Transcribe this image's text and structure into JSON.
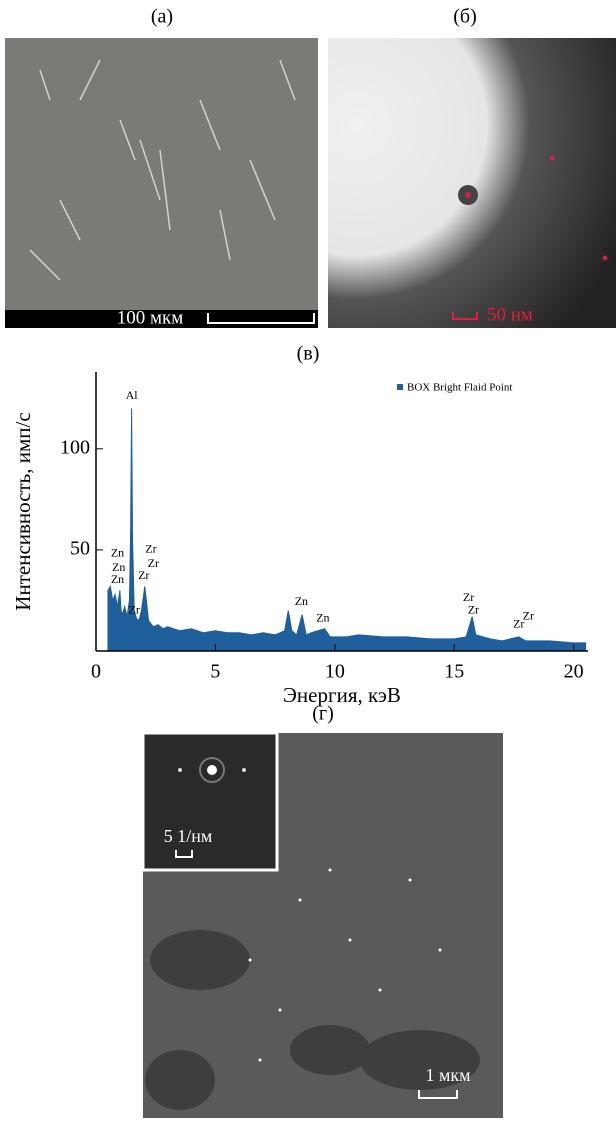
{
  "panels": {
    "a": {
      "label": "(а)",
      "scale": "100 мкм"
    },
    "b": {
      "label": "(б)",
      "scale": "50 нм"
    },
    "c": {
      "label": "(в)"
    },
    "d": {
      "label": "(г)",
      "inset_scale": "5 1/нм",
      "scale": "1 мкм"
    }
  },
  "chart_data": {
    "type": "area",
    "x_label": "Энергия, кэВ",
    "y_label": "Интенсивность, имп/с",
    "legend": "top-right",
    "xlim": [
      0,
      20.6
    ],
    "ylim": [
      0,
      138
    ],
    "xticks": [
      0,
      5,
      10,
      15,
      20
    ],
    "yticks": [
      50,
      100
    ],
    "x": [
      0.5,
      0.6,
      0.7,
      0.8,
      0.9,
      1.0,
      1.05,
      1.1,
      1.2,
      1.3,
      1.4,
      1.45,
      1.49,
      1.53,
      1.6,
      1.7,
      1.8,
      1.9,
      2.0,
      2.04,
      2.1,
      2.2,
      2.4,
      2.6,
      2.8,
      3.0,
      3.5,
      4.0,
      4.5,
      5.0,
      5.5,
      6.0,
      6.5,
      7.0,
      7.5,
      7.9,
      8.05,
      8.2,
      8.4,
      8.63,
      8.8,
      9.0,
      9.57,
      9.8,
      10.5,
      11,
      12,
      13,
      14,
      15,
      15.5,
      15.75,
      15.9,
      16.5,
      17,
      17.7,
      18,
      19,
      20,
      20.5
    ],
    "series": [
      {
        "name": "BOX Bright Flaid Point",
        "color": "#1f5f9c",
        "values": [
          30,
          32,
          25,
          28,
          22,
          30,
          20,
          18,
          22,
          17,
          25,
          60,
          120,
          55,
          20,
          16,
          15,
          20,
          28,
          32,
          26,
          15,
          12,
          13,
          11,
          12,
          10,
          11,
          9,
          10,
          9,
          9,
          8,
          9,
          8,
          10,
          20,
          10,
          8,
          18,
          8,
          9,
          11,
          7,
          7,
          8,
          7,
          7,
          6,
          6,
          7,
          17,
          8,
          6,
          5,
          7,
          5,
          5,
          4,
          4
        ]
      }
    ],
    "annotations": [
      {
        "text": "Al",
        "x": 1.49,
        "y": 126
      },
      {
        "text": "Zn",
        "x": 0.9,
        "y": 48
      },
      {
        "text": "Zn",
        "x": 0.95,
        "y": 41
      },
      {
        "text": "Zn",
        "x": 0.9,
        "y": 35
      },
      {
        "text": "Zr",
        "x": 2.3,
        "y": 50
      },
      {
        "text": "Zr",
        "x": 2.4,
        "y": 43
      },
      {
        "text": "Zr",
        "x": 2.0,
        "y": 37
      },
      {
        "text": "Zr",
        "x": 1.6,
        "y": 20
      },
      {
        "text": "Zn",
        "x": 8.6,
        "y": 24
      },
      {
        "text": "Zn",
        "x": 9.5,
        "y": 16
      },
      {
        "text": "Zr",
        "x": 15.6,
        "y": 26
      },
      {
        "text": "Zr",
        "x": 15.8,
        "y": 20
      },
      {
        "text": "Zr",
        "x": 17.7,
        "y": 13
      },
      {
        "text": "Zr",
        "x": 18.1,
        "y": 17
      }
    ]
  }
}
